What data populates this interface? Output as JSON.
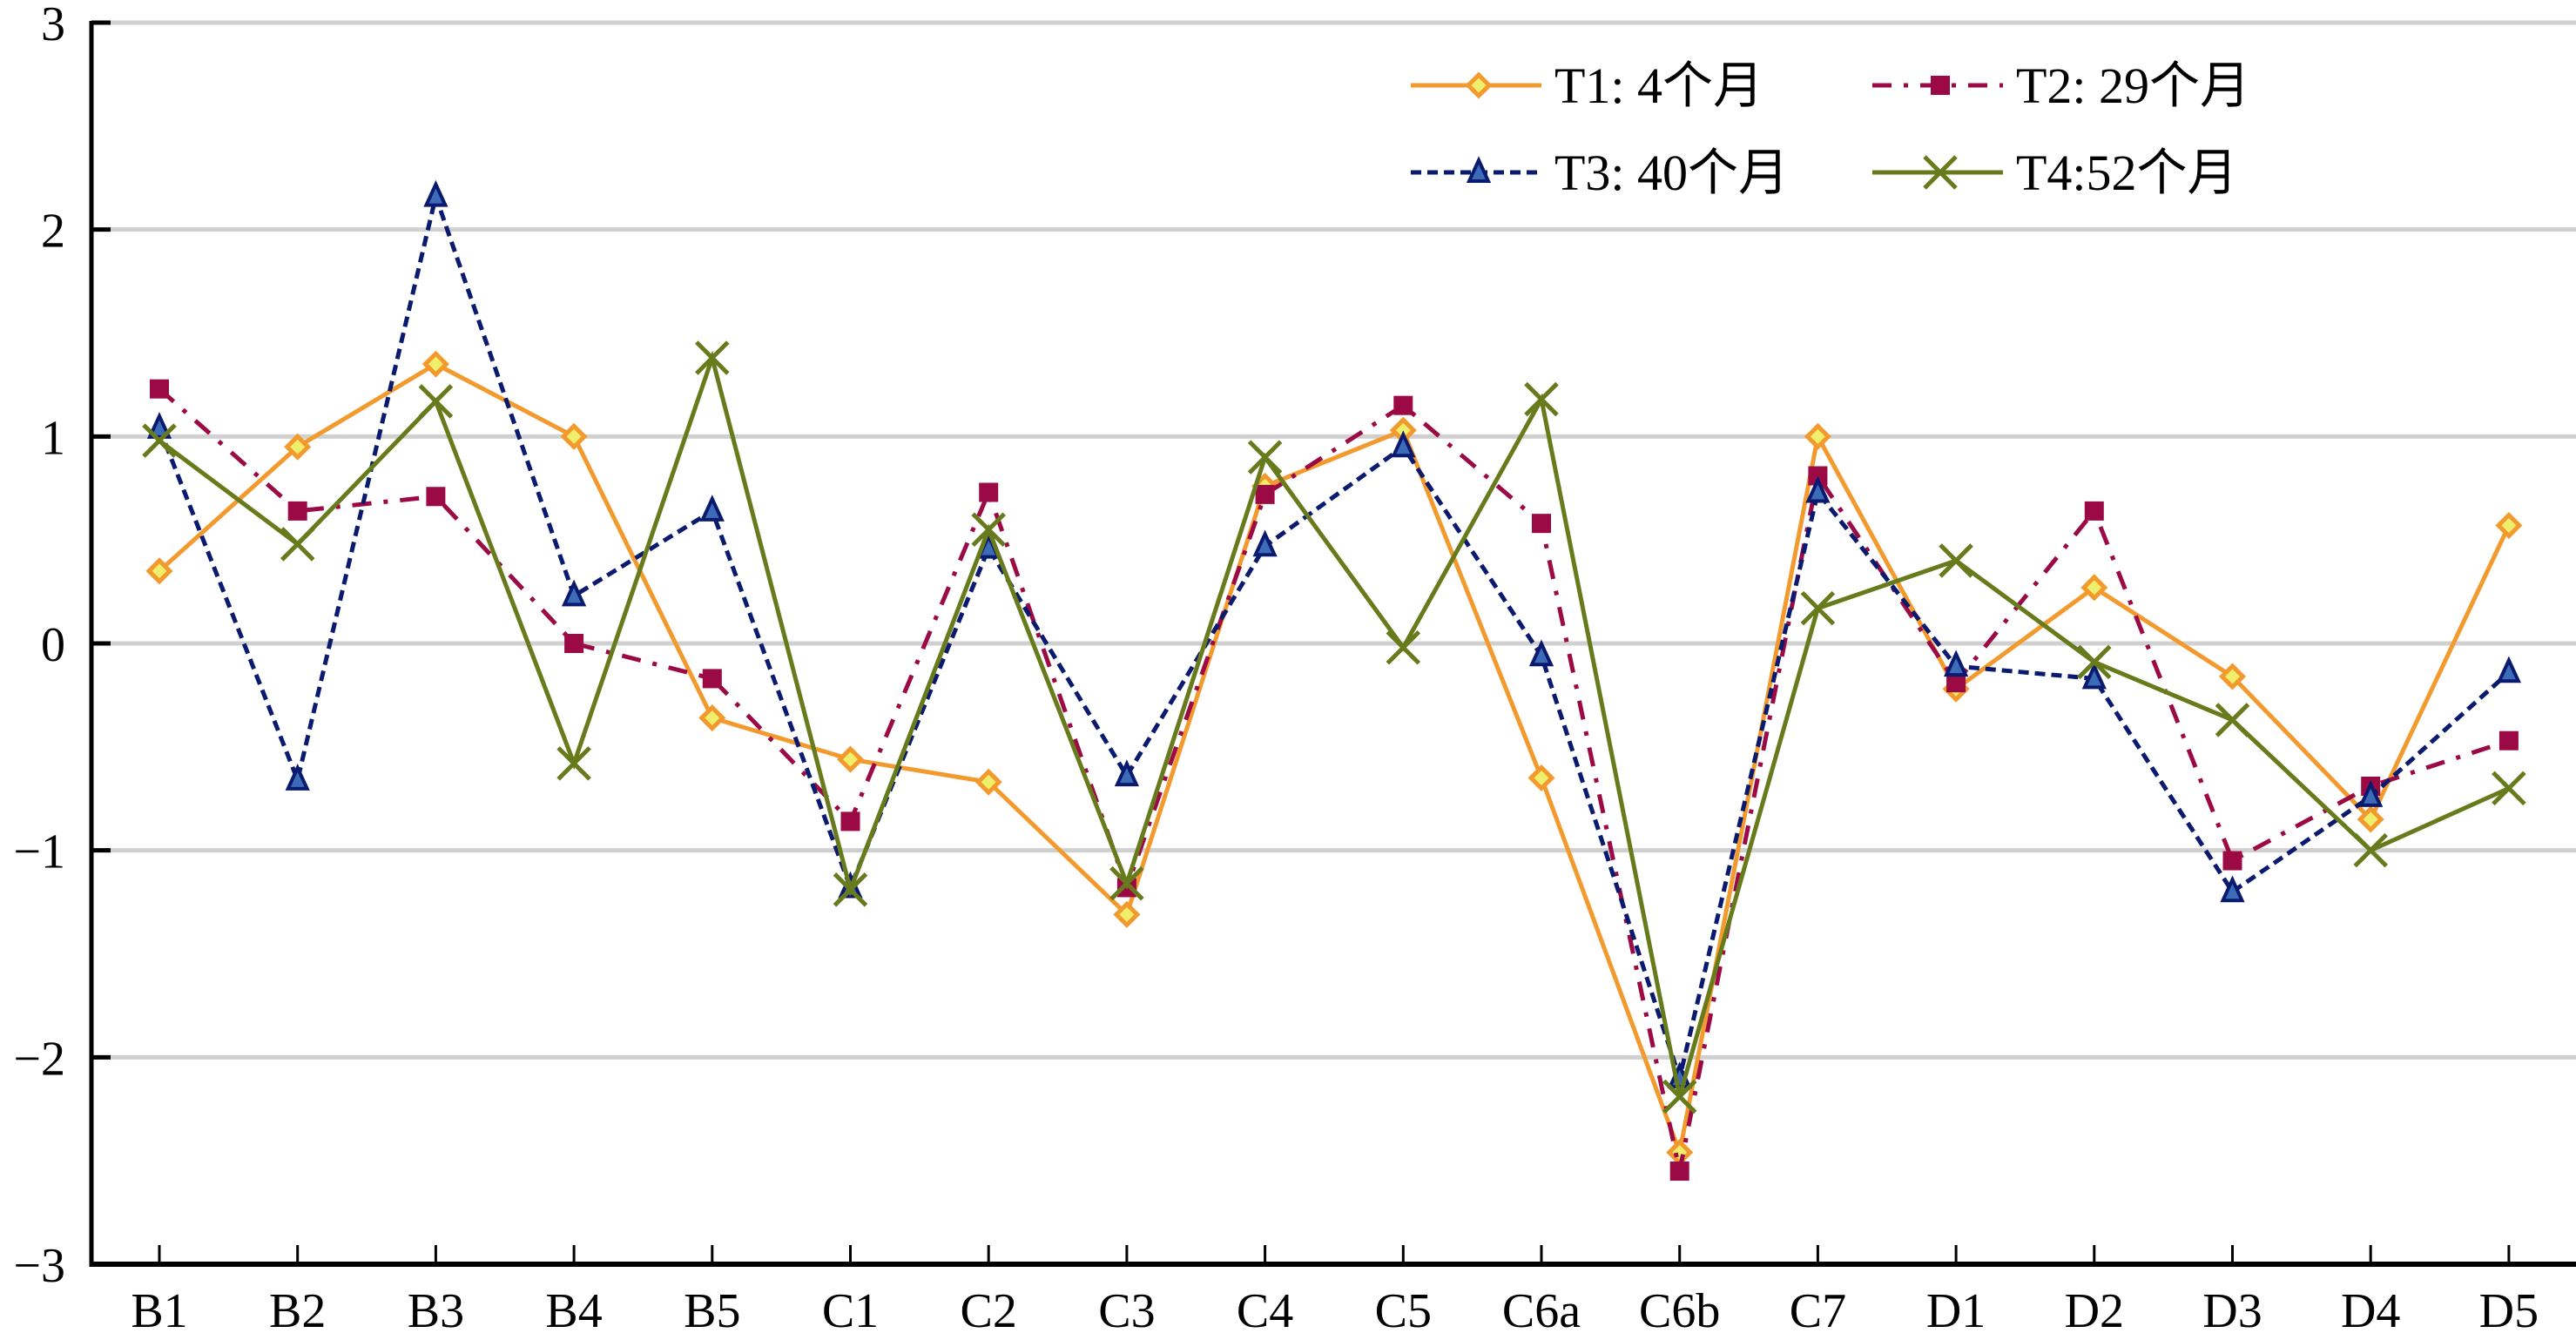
{
  "chart_data": {
    "type": "line",
    "title": "",
    "xlabel": "",
    "ylabel": "",
    "ylim": [
      -3,
      3
    ],
    "yticks": [
      3,
      2,
      1,
      0,
      -1,
      -2,
      -3
    ],
    "ytick_labels": [
      "3",
      "2",
      "1",
      "0",
      "−1",
      "−2",
      "−3"
    ],
    "grid": true,
    "legend_position": "top-right",
    "categories": [
      "B1",
      "B2",
      "B3",
      "B4",
      "B5",
      "C1",
      "C2",
      "C3",
      "C4",
      "C5",
      "C6a",
      "C6b",
      "C7",
      "D1",
      "D2",
      "D3",
      "D4",
      "D5"
    ],
    "series": [
      {
        "name": "T1: 4个月",
        "color": "#F39A2E",
        "marker": "diamond",
        "marker_fill": "#EFEF6B",
        "dash": "solid",
        "values": [
          0.35,
          0.95,
          1.35,
          1.0,
          -0.36,
          -0.56,
          -0.67,
          -1.31,
          0.76,
          1.03,
          -0.65,
          -2.46,
          1.0,
          -0.22,
          0.27,
          -0.16,
          -0.85,
          0.57
        ]
      },
      {
        "name": "T2: 29个月",
        "color": "#9B0A45",
        "marker": "square",
        "marker_fill": "#9B0A45",
        "dash": "dashdot",
        "values": [
          1.23,
          0.64,
          0.71,
          0.0,
          -0.17,
          -0.86,
          0.73,
          -1.18,
          0.72,
          1.15,
          0.58,
          -2.55,
          0.81,
          -0.19,
          0.64,
          -1.05,
          -0.69,
          -0.47
        ]
      },
      {
        "name": "T3: 40个月",
        "color": "#0A1A6E",
        "marker": "triangle",
        "marker_fill": "#3C6CB8",
        "dash": "dashed",
        "values": [
          1.04,
          -0.66,
          2.16,
          0.23,
          0.64,
          -1.18,
          0.46,
          -0.64,
          0.47,
          0.95,
          -0.06,
          -2.1,
          0.73,
          -0.11,
          -0.17,
          -1.2,
          -0.74,
          -0.14
        ]
      },
      {
        "name": "T4:52个月",
        "color": "#687B1C",
        "marker": "x",
        "marker_fill": "none",
        "dash": "solid",
        "values": [
          0.98,
          0.48,
          1.17,
          -0.58,
          1.38,
          -1.19,
          0.55,
          -1.16,
          0.9,
          -0.02,
          1.18,
          -2.19,
          0.17,
          0.4,
          -0.09,
          -0.37,
          -1.0,
          -0.7
        ]
      }
    ]
  }
}
